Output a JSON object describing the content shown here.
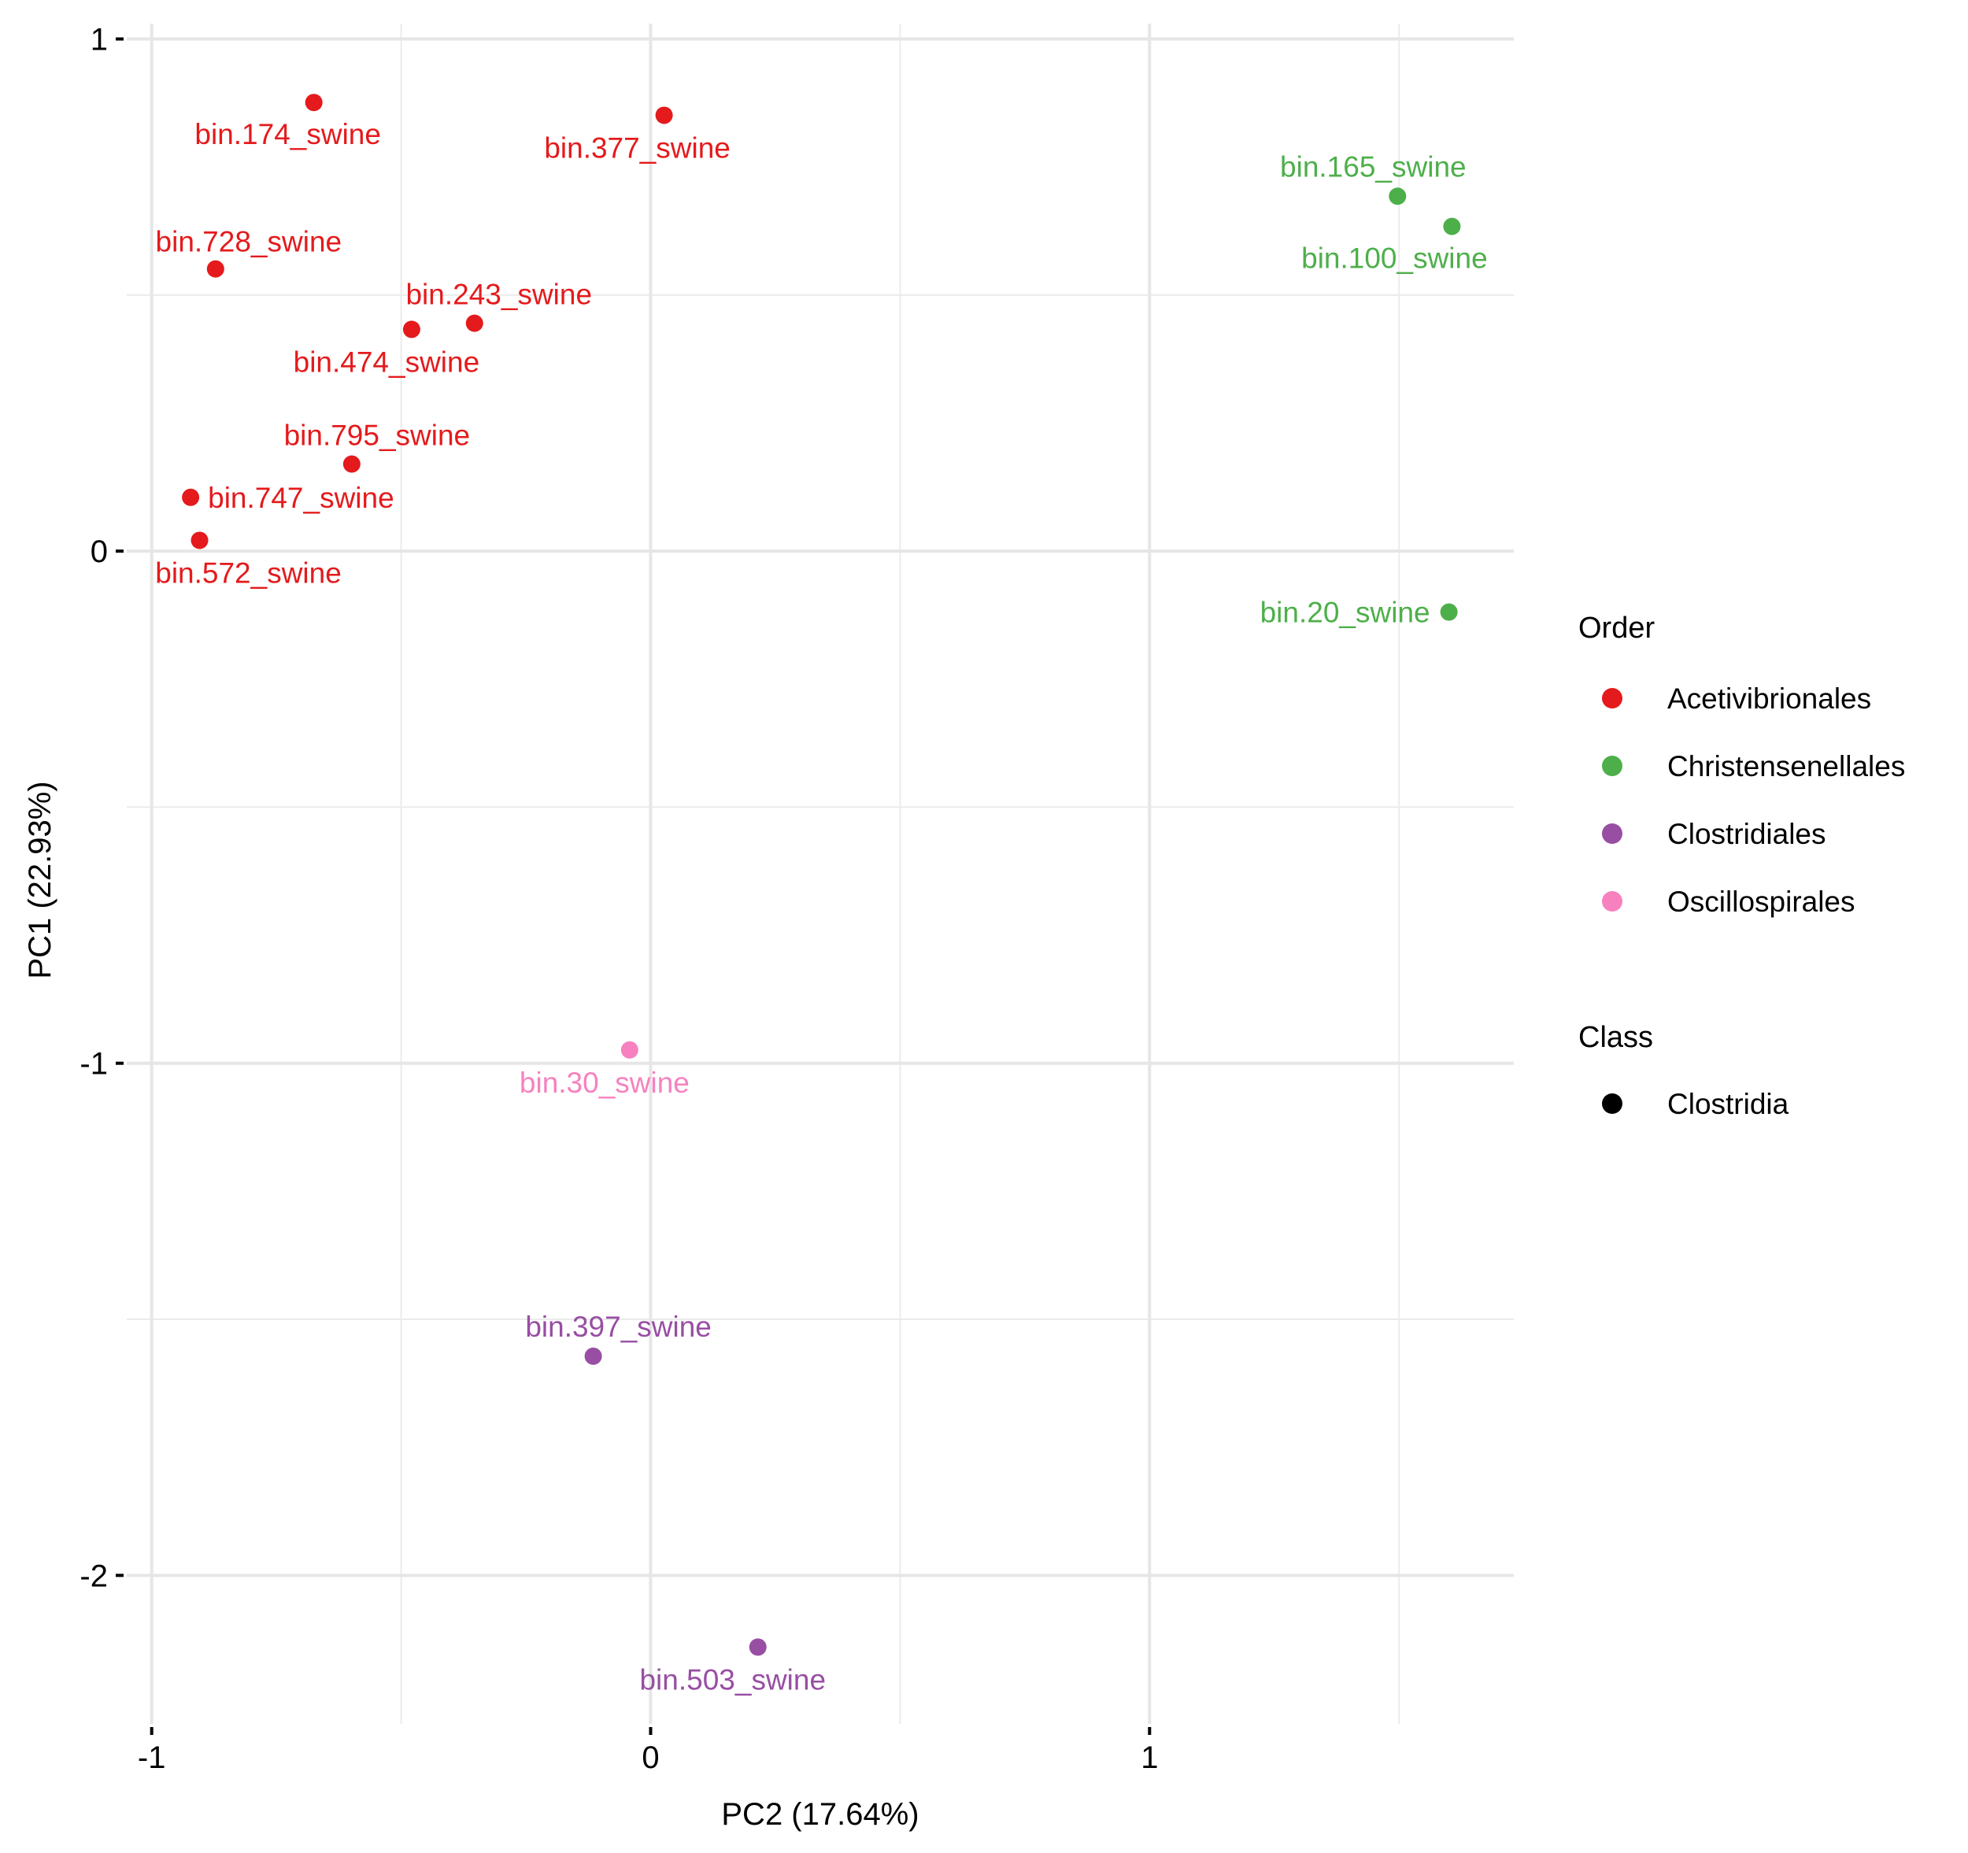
{
  "chart_data": {
    "type": "scatter",
    "title": "",
    "xlabel": "PC2 (17.64%)",
    "ylabel": "PC1 (22.93%)",
    "xlim": [
      -1.05,
      1.73
    ],
    "ylim": [
      -2.29,
      1.03
    ],
    "x_ticks": [
      -1,
      0,
      1
    ],
    "x_tick_labels": [
      "-1",
      "0",
      "1"
    ],
    "y_ticks": [
      1,
      0,
      -1,
      -2
    ],
    "y_tick_labels": [
      "1",
      "0",
      "-1",
      "-2"
    ],
    "grid": true,
    "legend_position": "right",
    "legends": [
      {
        "title": "Order",
        "entries": [
          {
            "label": "Acetivibrionales",
            "color": "#E41A1C"
          },
          {
            "label": "Christensenellales",
            "color": "#4DAF4A"
          },
          {
            "label": "Clostridiales",
            "color": "#984EA3"
          },
          {
            "label": "Oscillospirales",
            "color": "#F781BF"
          }
        ]
      },
      {
        "title": "Class",
        "entries": [
          {
            "label": "Clostridia",
            "color": "#000000"
          }
        ]
      }
    ],
    "points": [
      {
        "label": "bin.174_swine",
        "order": "Acetivibrionales",
        "class": "Clostridia",
        "x": -0.675,
        "y": 0.876
      },
      {
        "label": "bin.377_swine",
        "order": "Acetivibrionales",
        "class": "Clostridia",
        "x": 0.027,
        "y": 0.851
      },
      {
        "label": "bin.728_swine",
        "order": "Acetivibrionales",
        "class": "Clostridia",
        "x": -0.872,
        "y": 0.551
      },
      {
        "label": "bin.474_swine",
        "order": "Acetivibrionales",
        "class": "Clostridia",
        "x": -0.479,
        "y": 0.433
      },
      {
        "label": "bin.243_swine",
        "order": "Acetivibrionales",
        "class": "Clostridia",
        "x": -0.353,
        "y": 0.445
      },
      {
        "label": "bin.795_swine",
        "order": "Acetivibrionales",
        "class": "Clostridia",
        "x": -0.599,
        "y": 0.17
      },
      {
        "label": "bin.747_swine",
        "order": "Acetivibrionales",
        "class": "Clostridia",
        "x": -0.922,
        "y": 0.105
      },
      {
        "label": "bin.572_swine",
        "order": "Acetivibrionales",
        "class": "Clostridia",
        "x": -0.904,
        "y": 0.021
      },
      {
        "label": "bin.165_swine",
        "order": "Christensenellales",
        "class": "Clostridia",
        "x": 1.497,
        "y": 0.693
      },
      {
        "label": "bin.100_swine",
        "order": "Christensenellales",
        "class": "Clostridia",
        "x": 1.606,
        "y": 0.634
      },
      {
        "label": "bin.20_swine",
        "order": "Christensenellales",
        "class": "Clostridia",
        "x": 1.6,
        "y": -0.119
      },
      {
        "label": "bin.30_swine",
        "order": "Oscillospirales",
        "class": "Clostridia",
        "x": -0.042,
        "y": -0.974
      },
      {
        "label": "bin.397_swine",
        "order": "Clostridiales",
        "class": "Clostridia",
        "x": -0.115,
        "y": -1.572
      },
      {
        "label": "bin.503_swine",
        "order": "Clostridiales",
        "class": "Clostridia",
        "x": 0.215,
        "y": -2.14
      }
    ]
  }
}
